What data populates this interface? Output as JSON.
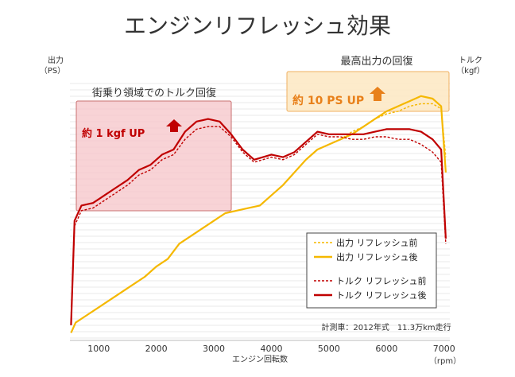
{
  "chart_data": {
    "type": "line",
    "title": "エンジンリフレッシュ効果",
    "ylabel_left": [
      "出力",
      "（PS）"
    ],
    "ylabel_right": [
      "トルク",
      "（kgf）"
    ],
    "xlabel": "エンジン回転数",
    "x_unit": "（rpm）",
    "x_ticks": [
      1000,
      2000,
      3000,
      4000,
      5000,
      6000,
      7000
    ],
    "xlim": [
      500,
      7100
    ],
    "ylim_relative": [
      0,
      100
    ],
    "note": "計測車：2012年式　11.3万km走行",
    "annotations": {
      "torque_region_label": "街乗り領域でのトルク回復",
      "torque_gain": "約 1 kgf UP",
      "power_region_label": "最高出力の回復",
      "power_gain": "約 10 PS UP"
    },
    "colors": {
      "power": "#f5b800",
      "torque": "#c00000",
      "torque_box_fill": "#f6c4c8",
      "torque_box_stroke": "#c97070",
      "power_box_fill": "#fde7c2",
      "power_box_stroke": "#f0b060",
      "power_text": "#e8801a",
      "torque_text": "#c00000",
      "arrow_power": "#e8801a",
      "arrow_torque": "#c00000"
    },
    "series": [
      {
        "name": "出力 リフレッシュ前",
        "axis": "power",
        "style": "dashed",
        "points": [
          [
            520,
            3
          ],
          [
            600,
            7
          ],
          [
            800,
            10
          ],
          [
            1000,
            13
          ],
          [
            1200,
            16
          ],
          [
            1400,
            19
          ],
          [
            1600,
            22
          ],
          [
            1800,
            25
          ],
          [
            2000,
            29
          ],
          [
            2200,
            32
          ],
          [
            2400,
            38
          ],
          [
            2600,
            41
          ],
          [
            2800,
            44
          ],
          [
            3000,
            47
          ],
          [
            3200,
            50
          ],
          [
            3400,
            51
          ],
          [
            3600,
            52
          ],
          [
            3800,
            53
          ],
          [
            4000,
            57
          ],
          [
            4200,
            61
          ],
          [
            4400,
            66
          ],
          [
            4600,
            71
          ],
          [
            4800,
            75
          ],
          [
            5000,
            77
          ],
          [
            5200,
            79
          ],
          [
            5400,
            82
          ],
          [
            5600,
            84
          ],
          [
            5800,
            87
          ],
          [
            6000,
            89
          ],
          [
            6200,
            90
          ],
          [
            6400,
            92
          ],
          [
            6600,
            93
          ],
          [
            6800,
            93
          ],
          [
            6950,
            91
          ],
          [
            7030,
            72
          ]
        ]
      },
      {
        "name": "出力 リフレッシュ後",
        "axis": "power",
        "style": "solid",
        "points": [
          [
            520,
            3
          ],
          [
            600,
            7
          ],
          [
            800,
            10
          ],
          [
            1000,
            13
          ],
          [
            1200,
            16
          ],
          [
            1400,
            19
          ],
          [
            1600,
            22
          ],
          [
            1800,
            25
          ],
          [
            2000,
            29
          ],
          [
            2200,
            32
          ],
          [
            2400,
            38
          ],
          [
            2600,
            41
          ],
          [
            2800,
            44
          ],
          [
            3000,
            47
          ],
          [
            3200,
            50
          ],
          [
            3400,
            51
          ],
          [
            3600,
            52
          ],
          [
            3800,
            53
          ],
          [
            4000,
            57
          ],
          [
            4200,
            61
          ],
          [
            4400,
            66
          ],
          [
            4600,
            71
          ],
          [
            4800,
            75
          ],
          [
            5000,
            77
          ],
          [
            5200,
            79
          ],
          [
            5400,
            81
          ],
          [
            5600,
            84
          ],
          [
            5800,
            87
          ],
          [
            6000,
            90
          ],
          [
            6200,
            92
          ],
          [
            6400,
            94
          ],
          [
            6600,
            96
          ],
          [
            6800,
            95
          ],
          [
            6950,
            92
          ],
          [
            7030,
            66
          ]
        ]
      },
      {
        "name": "トルク リフレッシュ前",
        "axis": "torque",
        "style": "dashed",
        "points": [
          [
            520,
            6
          ],
          [
            580,
            45
          ],
          [
            700,
            51
          ],
          [
            900,
            52
          ],
          [
            1100,
            55
          ],
          [
            1300,
            58
          ],
          [
            1500,
            61
          ],
          [
            1700,
            65
          ],
          [
            1900,
            67
          ],
          [
            2100,
            71
          ],
          [
            2300,
            73
          ],
          [
            2500,
            79
          ],
          [
            2700,
            83
          ],
          [
            2900,
            84
          ],
          [
            3100,
            84
          ],
          [
            3300,
            80
          ],
          [
            3500,
            74
          ],
          [
            3700,
            70
          ],
          [
            4000,
            72
          ],
          [
            4200,
            71
          ],
          [
            4400,
            73
          ],
          [
            4600,
            77
          ],
          [
            4800,
            81
          ],
          [
            5000,
            80
          ],
          [
            5200,
            80
          ],
          [
            5400,
            79
          ],
          [
            5600,
            79
          ],
          [
            5800,
            80
          ],
          [
            6000,
            80
          ],
          [
            6200,
            79
          ],
          [
            6400,
            79
          ],
          [
            6600,
            77
          ],
          [
            6800,
            74
          ],
          [
            6950,
            70
          ],
          [
            7030,
            38
          ]
        ]
      },
      {
        "name": "トルク リフレッシュ後",
        "axis": "torque",
        "style": "solid",
        "points": [
          [
            520,
            6
          ],
          [
            580,
            47
          ],
          [
            700,
            53
          ],
          [
            900,
            54
          ],
          [
            1100,
            57
          ],
          [
            1300,
            60
          ],
          [
            1500,
            63
          ],
          [
            1700,
            67
          ],
          [
            1900,
            69
          ],
          [
            2100,
            73
          ],
          [
            2300,
            75
          ],
          [
            2500,
            82
          ],
          [
            2700,
            86
          ],
          [
            2900,
            87
          ],
          [
            3100,
            86
          ],
          [
            3300,
            81
          ],
          [
            3500,
            75
          ],
          [
            3700,
            71
          ],
          [
            4000,
            73
          ],
          [
            4200,
            72
          ],
          [
            4400,
            74
          ],
          [
            4600,
            78
          ],
          [
            4800,
            82
          ],
          [
            5000,
            81
          ],
          [
            5200,
            81
          ],
          [
            5400,
            81
          ],
          [
            5600,
            81
          ],
          [
            5800,
            82
          ],
          [
            6000,
            83
          ],
          [
            6200,
            83
          ],
          [
            6400,
            83
          ],
          [
            6600,
            82
          ],
          [
            6800,
            79
          ],
          [
            6950,
            75
          ],
          [
            7030,
            40
          ]
        ]
      }
    ],
    "legend": {
      "position": "bottom-right",
      "items": [
        {
          "label": "出力 リフレッシュ前",
          "series": 0
        },
        {
          "label": "出力 リフレッシュ後",
          "series": 1
        },
        {
          "label": "トルク リフレッシュ前",
          "series": 2
        },
        {
          "label": "トルク リフレッシュ後",
          "series": 3
        }
      ]
    }
  }
}
